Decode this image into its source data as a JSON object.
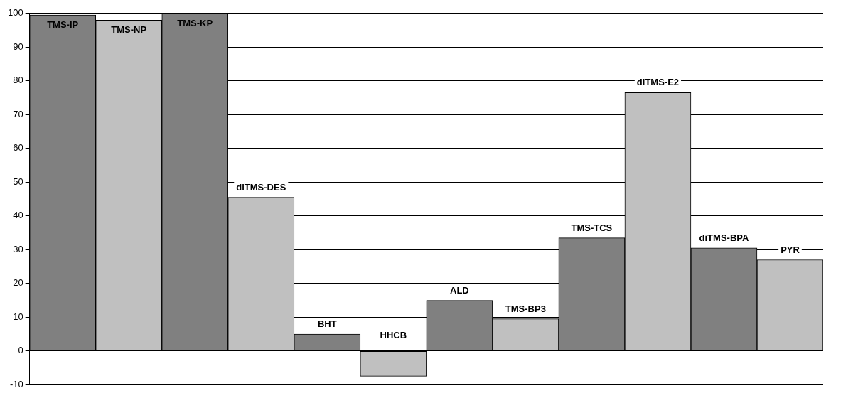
{
  "chart_data": {
    "type": "bar",
    "categories": [
      "TMS-IP",
      "TMS-NP",
      "TMS-KP",
      "diTMS-DES",
      "BHT",
      "HHCB",
      "ALD",
      "TMS-BP3",
      "TMS-TCS",
      "diTMS-E2",
      "diTMS-BPA",
      "PYR"
    ],
    "values": [
      99.5,
      98,
      100,
      45.5,
      5,
      -7.5,
      15,
      9.5,
      33.5,
      76.5,
      30.5,
      27
    ],
    "colors": [
      "#808080",
      "#c0c0c0",
      "#808080",
      "#c0c0c0",
      "#808080",
      "#c0c0c0",
      "#808080",
      "#c0c0c0",
      "#808080",
      "#c0c0c0",
      "#808080",
      "#c0c0c0"
    ],
    "ylim": [
      -10,
      100
    ],
    "yticks": [
      -10,
      0,
      10,
      20,
      30,
      40,
      50,
      60,
      70,
      80,
      90,
      100
    ],
    "grid": "y",
    "legend": false,
    "tick_labels": "y"
  }
}
